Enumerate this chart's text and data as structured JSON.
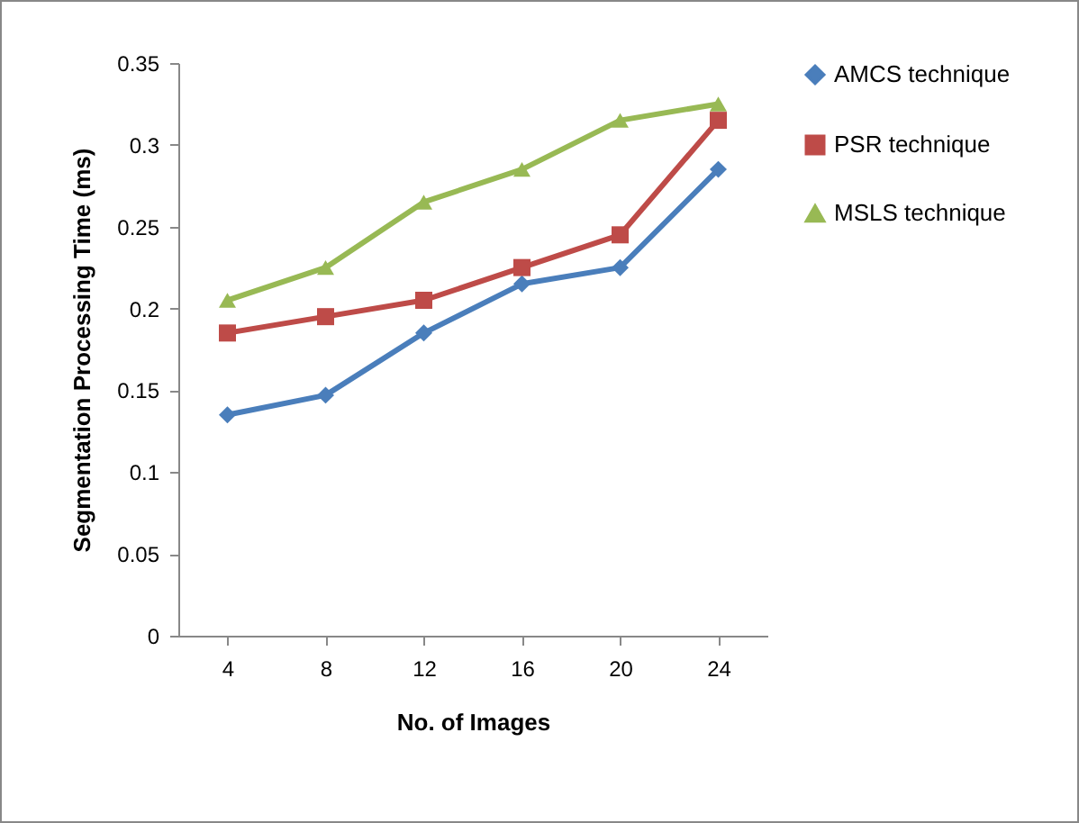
{
  "chart_data": {
    "type": "line",
    "xlabel": "No. of Images",
    "ylabel": "Segmentation Processing Time (ms)",
    "categories": [
      "4",
      "8",
      "12",
      "16",
      "20",
      "24"
    ],
    "series": [
      {
        "name": "AMCS technique",
        "color": "#4a7ebb",
        "marker": "diamond",
        "values": [
          0.135,
          0.147,
          0.185,
          0.215,
          0.225,
          0.285
        ]
      },
      {
        "name": "PSR technique",
        "color": "#be4b48",
        "marker": "square",
        "values": [
          0.185,
          0.195,
          0.205,
          0.225,
          0.245,
          0.315
        ]
      },
      {
        "name": "MSLS technique",
        "color": "#98b954",
        "marker": "triangle",
        "values": [
          0.205,
          0.225,
          0.265,
          0.285,
          0.315,
          0.325
        ]
      }
    ],
    "ylim": [
      0,
      0.35
    ],
    "yticks": [
      0,
      0.05,
      0.1,
      0.15,
      0.2,
      0.25,
      0.3,
      0.35
    ],
    "grid": false,
    "legend": "right",
    "line_style": "solid"
  }
}
